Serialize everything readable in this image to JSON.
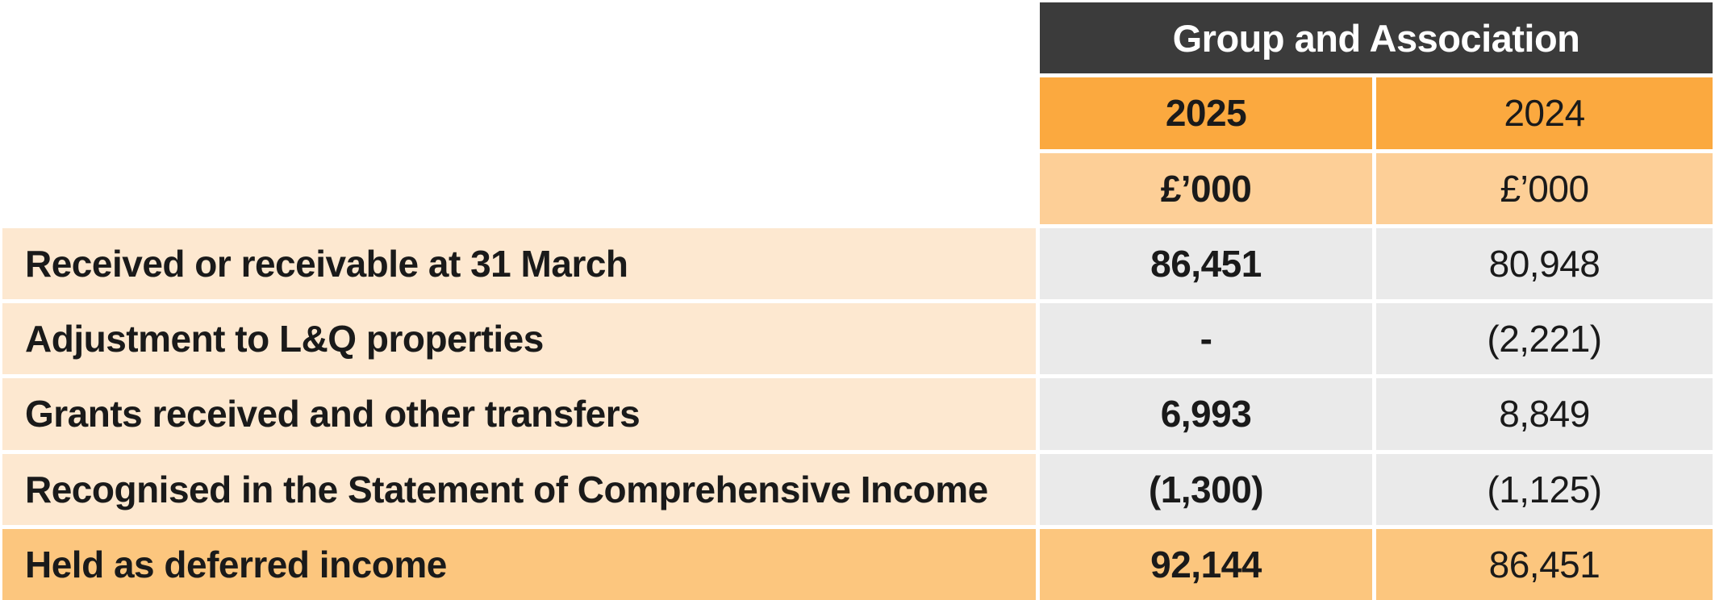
{
  "table": {
    "header": {
      "group_title": "Group and Association",
      "col_2025": {
        "year": "2025",
        "unit": "£’000"
      },
      "col_2024": {
        "year": "2024",
        "unit": "£’000"
      }
    },
    "rows": [
      {
        "label": "Received or receivable at 31 March",
        "v2025": "86,451",
        "v2024": "80,948"
      },
      {
        "label": "Adjustment to L&Q properties",
        "v2025": "-",
        "v2024": "(2,221)"
      },
      {
        "label": "Grants received and other transfers",
        "v2025": "6,993",
        "v2024": "8,849"
      },
      {
        "label": "Recognised in the Statement of Comprehensive Income",
        "v2025": "(1,300)",
        "v2024": "(1,125)"
      }
    ],
    "total_row": {
      "label": "Held as deferred income",
      "v2025": "92,144",
      "v2024": "86,451"
    }
  },
  "colors": {
    "dark": "#3B3B3B",
    "orange": "#FBA93F",
    "orange_light": "#FDCF97",
    "peach": "#FDE8D0",
    "gray": "#EAEAEA",
    "orange_mid": "#FCC67E",
    "text": "#1A1A1A"
  }
}
